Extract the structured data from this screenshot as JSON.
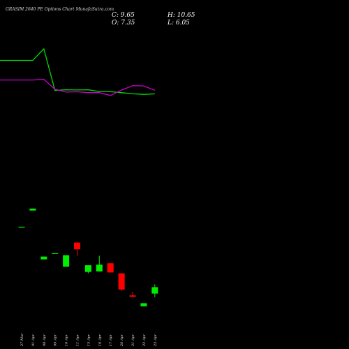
{
  "header": {
    "title": "GRASIM 2640 PE Options  Chart MunafaSutra.com",
    "close_label": "C: 9.65",
    "high_label": "H: 10.65",
    "open_label": "O: 7.35",
    "low_label": "L: 6.05"
  },
  "chart_data": {
    "type": "candlestick",
    "categories": [
      "27 Mar",
      "01 Apr",
      "08 Apr",
      "09 Apr",
      "10 Apr",
      "11 Apr",
      "15 Apr",
      "16 Apr",
      "17 Apr",
      "20 Apr",
      "21 Apr",
      "22 Apr",
      "23 Apr"
    ],
    "candles": [
      {
        "open": 31.3,
        "high": 31.3,
        "low": 31.3,
        "close": 31.3
      },
      {
        "open": 37.1,
        "high": 37.8,
        "low": 37.1,
        "close": 37.8
      },
      {
        "open": 19.6,
        "high": 20.6,
        "low": 19.6,
        "close": 20.6
      },
      {
        "open": 21.8,
        "high": 21.8,
        "low": 21.8,
        "close": 21.8
      },
      {
        "open": 17.0,
        "high": 21.1,
        "low": 17.0,
        "close": 21.1
      },
      {
        "open": 25.6,
        "high": 25.6,
        "low": 20.8,
        "close": 23.2
      },
      {
        "open": 15.1,
        "high": 17.5,
        "low": 14.6,
        "close": 17.5
      },
      {
        "open": 15.3,
        "high": 20.9,
        "low": 15.3,
        "close": 17.7
      },
      {
        "open": 18.2,
        "high": 18.2,
        "low": 14.9,
        "close": 14.9
      },
      {
        "open": 14.6,
        "high": 14.6,
        "low": 8.3,
        "close": 8.8
      },
      {
        "open": 6.7,
        "high": 7.9,
        "low": 6.2,
        "close": 6.2
      },
      {
        "open": 2.8,
        "high": 3.9,
        "low": 2.8,
        "close": 3.9
      },
      {
        "open": 7.35,
        "high": 10.65,
        "low": 6.05,
        "close": 9.65
      }
    ],
    "ylim": [
      -5,
      50
    ],
    "line_series": [
      {
        "color": "#00dd00",
        "values": [
          0.1,
          0.1,
          0.0,
          0.36,
          0.355,
          0.357,
          0.355,
          0.37,
          0.372,
          0.38,
          0.39,
          0.395,
          0.391
        ]
      },
      {
        "color": "#cc00cc",
        "values": [
          0.27,
          0.27,
          0.265,
          0.35,
          0.375,
          0.373,
          0.38,
          0.38,
          0.405,
          0.358,
          0.32,
          0.322,
          0.36
        ]
      }
    ],
    "line_range": [
      0,
      1
    ],
    "up_color": "#00ee00",
    "down_color": "#ff0000",
    "background": "#000000"
  }
}
